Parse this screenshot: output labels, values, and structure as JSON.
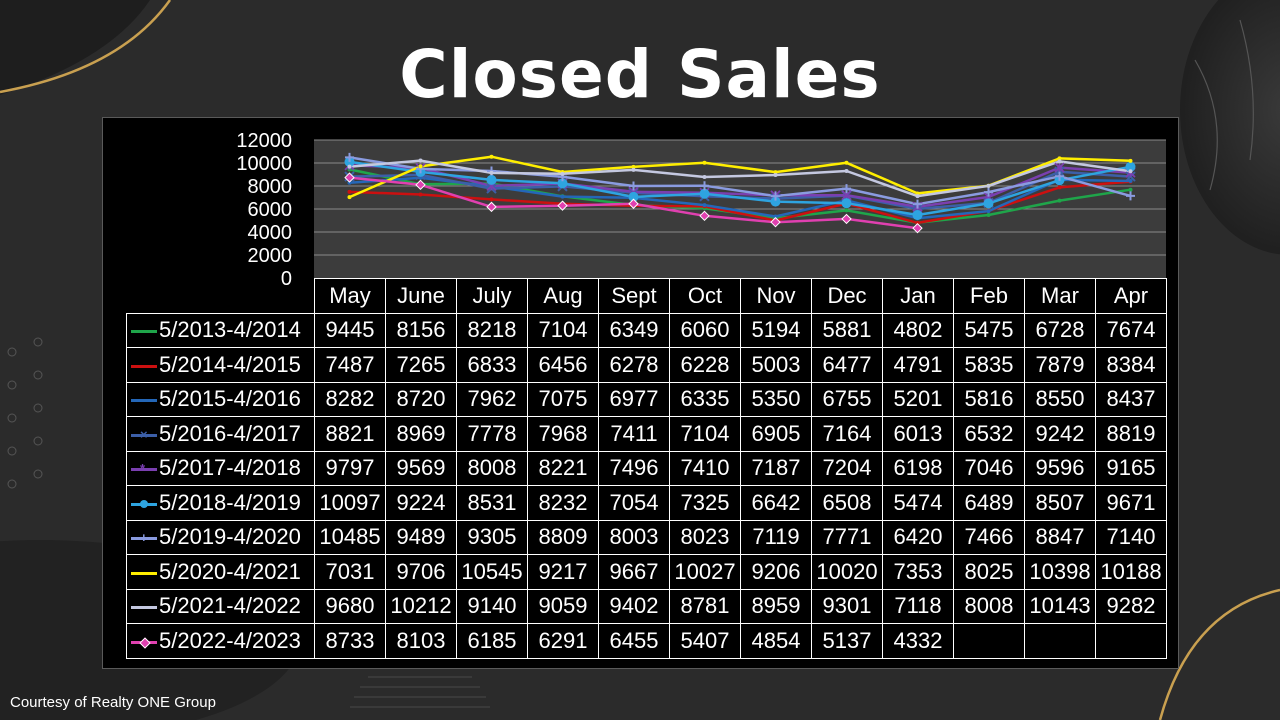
{
  "slide": {
    "title": "Closed Sales",
    "credit": "Courtesy of Realty ONE Group"
  },
  "chart_data": {
    "type": "line",
    "title": "Closed Sales",
    "categories": [
      "May",
      "June",
      "July",
      "Aug",
      "Sept",
      "Oct",
      "Nov",
      "Dec",
      "Jan",
      "Feb",
      "Mar",
      "Apr"
    ],
    "ylim": [
      0,
      12000
    ],
    "yticks": [
      "12000",
      "10000",
      "8000",
      "6000",
      "4000",
      "2000",
      "0"
    ],
    "grid": true,
    "legend_placement": "table-left",
    "series": [
      {
        "name": "5/2013-4/2014",
        "color": "#1fa54a",
        "marker": "none",
        "values": [
          9445,
          8156,
          8218,
          7104,
          6349,
          6060,
          5194,
          5881,
          4802,
          5475,
          6728,
          7674
        ]
      },
      {
        "name": "5/2014-4/2015",
        "color": "#cc1010",
        "marker": "none",
        "values": [
          7487,
          7265,
          6833,
          6456,
          6278,
          6228,
          5003,
          6477,
          4791,
          5835,
          7879,
          8384
        ]
      },
      {
        "name": "5/2015-4/2016",
        "color": "#2467b8",
        "marker": "none",
        "values": [
          8282,
          8720,
          7962,
          7075,
          6977,
          6335,
          5350,
          6755,
          5201,
          5816,
          8550,
          8437
        ]
      },
      {
        "name": "5/2016-4/2017",
        "color": "#3c5fa8",
        "marker": "x",
        "values": [
          8821,
          8969,
          7778,
          7968,
          7411,
          7104,
          6905,
          7164,
          6013,
          6532,
          9242,
          8819
        ]
      },
      {
        "name": "5/2017-4/2018",
        "color": "#7a3fb0",
        "marker": "star",
        "values": [
          9797,
          9569,
          8008,
          8221,
          7496,
          7410,
          7187,
          7204,
          6198,
          7046,
          9596,
          9165
        ]
      },
      {
        "name": "5/2018-4/2019",
        "color": "#2ea4e0",
        "marker": "circle",
        "values": [
          10097,
          9224,
          8531,
          8232,
          7054,
          7325,
          6642,
          6508,
          5474,
          6489,
          8507,
          9671
        ]
      },
      {
        "name": "5/2019-4/2020",
        "color": "#8a9be0",
        "marker": "plus",
        "values": [
          10485,
          9489,
          9305,
          8809,
          8003,
          8023,
          7119,
          7771,
          6420,
          7466,
          8847,
          7140
        ]
      },
      {
        "name": "5/2020-4/2021",
        "color": "#ffee00",
        "marker": "none",
        "values": [
          7031,
          9706,
          10545,
          9217,
          9667,
          10027,
          9206,
          10020,
          7353,
          8025,
          10398,
          10188
        ]
      },
      {
        "name": "5/2021-4/2022",
        "color": "#c4c8e0",
        "marker": "none",
        "values": [
          9680,
          10212,
          9140,
          9059,
          9402,
          8781,
          8959,
          9301,
          7118,
          8008,
          10143,
          9282
        ]
      },
      {
        "name": "5/2022-4/2023",
        "color": "#e040b0",
        "marker": "diamond",
        "values": [
          8733,
          8103,
          6185,
          6291,
          6455,
          5407,
          4854,
          5137,
          4332,
          null,
          null,
          null
        ]
      }
    ],
    "table_rows": [
      [
        "9445",
        "8156",
        "8218",
        "7104",
        "6349",
        "6060",
        "5194",
        "5881",
        "4802",
        "5475",
        "6728",
        "7674"
      ],
      [
        "7487",
        "7265",
        "6833",
        "6456",
        "6278",
        "6228",
        "5003",
        "6477",
        "4791",
        "5835",
        "7879",
        "8384"
      ],
      [
        "8282",
        "8720",
        "7962",
        "7075",
        "6977",
        "6335",
        "5350",
        "6755",
        "5201",
        "5816",
        "8550",
        "8437"
      ],
      [
        "8821",
        "8969",
        "7778",
        "7968",
        "7411",
        "7104",
        "6905",
        "7164",
        "6013",
        "6532",
        "9242",
        "8819"
      ],
      [
        "9797",
        "9569",
        "8008",
        "8221",
        "7496",
        "7410",
        "7187",
        "7204",
        "6198",
        "7046",
        "9596",
        "9165"
      ],
      [
        "10097",
        "9224",
        "8531",
        "8232",
        "7054",
        "7325",
        "6642",
        "6508",
        "5474",
        "6489",
        "8507",
        "9671"
      ],
      [
        "10485",
        "9489",
        "9305",
        "8809",
        "8003",
        "8023",
        "7119",
        "7771",
        "6420",
        "7466",
        "8847",
        "7140"
      ],
      [
        "7031",
        "9706",
        "10545",
        "9217",
        "9667",
        "10027",
        "9206",
        "10020",
        "7353",
        "8025",
        "10398",
        "10188"
      ],
      [
        "9680",
        "10212",
        "9140",
        "9059",
        "9402",
        "8781",
        "8959",
        "9301",
        "7118",
        "8008",
        "10143",
        "9282"
      ],
      [
        "8733",
        "8103",
        "6185",
        "6291",
        "6455",
        "5407",
        "4854",
        "5137",
        "4332",
        "",
        "",
        ""
      ]
    ]
  },
  "colors": {
    "background": "#2b2b2b",
    "panel": "#000000",
    "plot_area": "#3c3c3c",
    "accent_gold": "#c9a050"
  }
}
